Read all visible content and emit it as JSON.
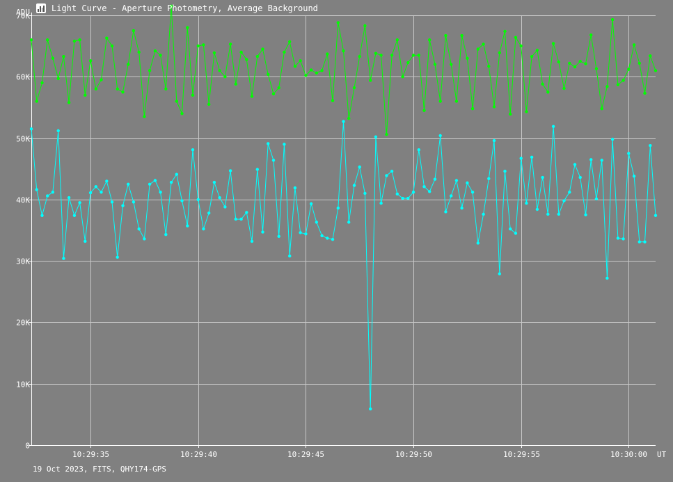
{
  "window": {
    "title": "Light Curve - Aperture Photometry, Average Background"
  },
  "footer": {
    "text": "19 Oct 2023, FITS, QHY174-GPS"
  },
  "colors": {
    "background": "#808080",
    "grid": "#c8c8c8",
    "green": "#00ff00",
    "cyan": "#00ffff"
  },
  "chart_data": {
    "type": "line",
    "title": "Light Curve - Aperture Photometry, Average Background",
    "ylabel": "ADU",
    "xlabel": "UT",
    "xlim": [
      0,
      116
    ],
    "ylim": [
      0,
      70000
    ],
    "grid": true,
    "x_ticks": [
      {
        "pos": 11,
        "label": "10:29:35"
      },
      {
        "pos": 31,
        "label": "10:29:40"
      },
      {
        "pos": 51,
        "label": "10:29:45"
      },
      {
        "pos": 71,
        "label": "10:29:50"
      },
      {
        "pos": 91,
        "label": "10:29:55"
      },
      {
        "pos": 111,
        "label": "10:30:00"
      }
    ],
    "y_ticks": [
      {
        "value": 0,
        "label": "0"
      },
      {
        "value": 10000,
        "label": "10K"
      },
      {
        "value": 20000,
        "label": "20K"
      },
      {
        "value": 30000,
        "label": "30K"
      },
      {
        "value": 40000,
        "label": "40K"
      },
      {
        "value": 50000,
        "label": "50K"
      },
      {
        "value": 60000,
        "label": "60K"
      },
      {
        "value": 70000,
        "label": "70K"
      }
    ],
    "series": [
      {
        "color": "#00ff00",
        "values": [
          66000,
          56000,
          59000,
          66000,
          63000,
          59700,
          63300,
          55800,
          65800,
          66000,
          57000,
          62600,
          58000,
          59500,
          66300,
          65000,
          58000,
          57500,
          62000,
          67500,
          64000,
          53500,
          61000,
          64200,
          63500,
          58000,
          71500,
          56000,
          54000,
          68000,
          57000,
          65000,
          65200,
          55500,
          63900,
          61000,
          60000,
          65300,
          58800,
          64000,
          62800,
          56800,
          63300,
          64500,
          60400,
          57200,
          58200,
          64000,
          65700,
          61700,
          62600,
          60200,
          61100,
          60600,
          61000,
          63700,
          56100,
          68800,
          64200,
          53200,
          58200,
          63300,
          68300,
          59400,
          63800,
          63500,
          50600,
          63500,
          66000,
          60000,
          62300,
          63500,
          63500,
          54500,
          66000,
          62000,
          56000,
          66700,
          62000,
          56000,
          66700,
          63000,
          54800,
          64500,
          65300,
          61700,
          55100,
          63900,
          67400,
          53900,
          66400,
          65000,
          54300,
          63300,
          64300,
          58800,
          57500,
          65400,
          62400,
          58100,
          62200,
          61600,
          62500,
          62100,
          66800,
          61300,
          54800,
          58400,
          69300,
          58700,
          59400,
          61200,
          65200,
          62200,
          57300,
          63400,
          61000
        ]
      },
      {
        "color": "#00ffff",
        "values": [
          51500,
          41600,
          37400,
          40600,
          41200,
          51200,
          30400,
          40300,
          37400,
          39500,
          33200,
          41100,
          42100,
          41200,
          43000,
          39600,
          30600,
          39000,
          42500,
          39600,
          35200,
          33600,
          42500,
          43100,
          41200,
          34300,
          42800,
          44100,
          39800,
          35700,
          48100,
          40000,
          35200,
          37800,
          42800,
          40300,
          38800,
          44700,
          36800,
          36800,
          37900,
          33200,
          44900,
          34700,
          49100,
          46400,
          34000,
          49000,
          30800,
          41900,
          34600,
          34400,
          39300,
          36300,
          34100,
          33700,
          33500,
          38600,
          52700,
          36300,
          42300,
          45300,
          41000,
          5900,
          50200,
          39400,
          43900,
          44600,
          40900,
          40200,
          40200,
          41200,
          48100,
          42100,
          41300,
          43300,
          50400,
          38000,
          40600,
          43100,
          38600,
          42700,
          41200,
          32900,
          37600,
          43400,
          49600,
          27900,
          44600,
          35200,
          34500,
          46700,
          39400,
          46900,
          38400,
          43600,
          37600,
          51900,
          37600,
          39800,
          41200,
          45700,
          43600,
          37500,
          46500,
          40100,
          46400,
          27200,
          49800,
          33700,
          33600,
          47500,
          43800,
          33100,
          33100,
          48800,
          37400
        ]
      }
    ]
  }
}
